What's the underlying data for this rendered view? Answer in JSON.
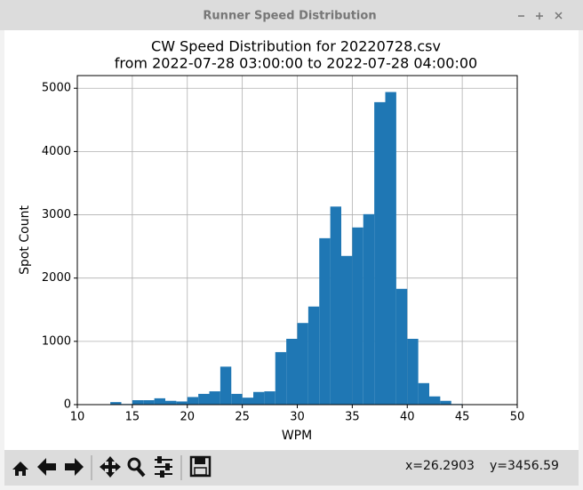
{
  "window": {
    "title": "Runner Speed Distribution",
    "status_x": "x=26.2903",
    "status_y": "y=3456.59"
  },
  "chart_data": {
    "type": "histogram",
    "title": "CW Speed Distribution for 20220728.csv",
    "subtitle": "from 2022-07-28 03:00:00 to 2022-07-28 04:00:00",
    "x_label": "WPM",
    "y_label": "Spot Count",
    "bins": [
      13,
      14,
      15,
      16,
      17,
      18,
      19,
      20,
      21,
      22,
      23,
      24,
      25,
      26,
      27,
      28,
      29,
      30,
      31,
      32,
      33,
      34,
      35,
      36,
      37,
      38,
      39,
      40,
      41,
      42,
      43,
      44,
      45
    ],
    "values": [
      40,
      10,
      70,
      70,
      100,
      60,
      50,
      120,
      170,
      210,
      600,
      170,
      110,
      200,
      210,
      830,
      1040,
      1290,
      1550,
      2630,
      3130,
      2350,
      2800,
      3010,
      4780,
      4940,
      1830,
      1040,
      340,
      130,
      60,
      10
    ],
    "color": "#1f77b4",
    "xlim": [
      10,
      50
    ],
    "xticks": [
      10,
      15,
      20,
      25,
      30,
      35,
      40,
      45,
      50
    ],
    "ylim": [
      0,
      5200
    ],
    "yticks": [
      0,
      1000,
      2000,
      3000,
      4000,
      5000
    ],
    "grid": true
  }
}
